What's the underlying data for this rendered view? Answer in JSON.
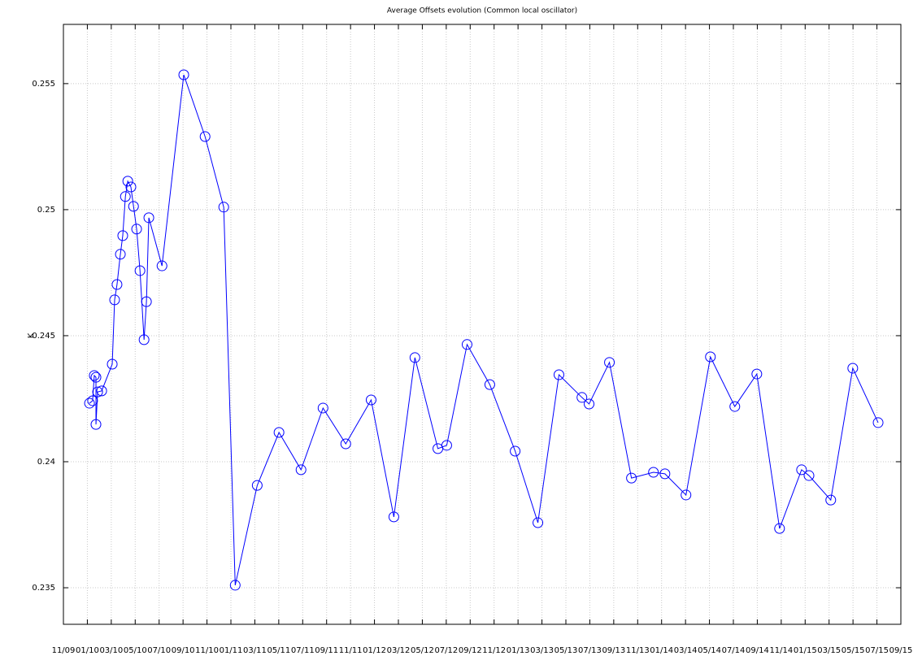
{
  "chart_data": {
    "type": "line",
    "title": "Average Offsets evolution (Common local oscillator)",
    "ylabel": "K",
    "grid": true,
    "marker": "circle",
    "xlim": [
      0,
      35
    ],
    "xticks": [
      {
        "value": 0,
        "label": "11/09"
      },
      {
        "value": 1,
        "label": "01/10"
      },
      {
        "value": 2,
        "label": "03/10"
      },
      {
        "value": 3,
        "label": "05/10"
      },
      {
        "value": 4,
        "label": "07/10"
      },
      {
        "value": 5,
        "label": "09/10"
      },
      {
        "value": 6,
        "label": "11/10"
      },
      {
        "value": 7,
        "label": "01/11"
      },
      {
        "value": 8,
        "label": "03/11"
      },
      {
        "value": 9,
        "label": "05/11"
      },
      {
        "value": 10,
        "label": "07/11"
      },
      {
        "value": 11,
        "label": "09/11"
      },
      {
        "value": 12,
        "label": "11/11"
      },
      {
        "value": 13,
        "label": "01/12"
      },
      {
        "value": 14,
        "label": "03/12"
      },
      {
        "value": 15,
        "label": "05/12"
      },
      {
        "value": 16,
        "label": "07/12"
      },
      {
        "value": 17,
        "label": "09/12"
      },
      {
        "value": 18,
        "label": "11/12"
      },
      {
        "value": 19,
        "label": "01/13"
      },
      {
        "value": 20,
        "label": "03/13"
      },
      {
        "value": 21,
        "label": "05/13"
      },
      {
        "value": 22,
        "label": "07/13"
      },
      {
        "value": 23,
        "label": "09/13"
      },
      {
        "value": 24,
        "label": "11/13"
      },
      {
        "value": 25,
        "label": "01/14"
      },
      {
        "value": 26,
        "label": "03/14"
      },
      {
        "value": 27,
        "label": "05/14"
      },
      {
        "value": 28,
        "label": "07/14"
      },
      {
        "value": 29,
        "label": "09/14"
      },
      {
        "value": 30,
        "label": "11/14"
      },
      {
        "value": 31,
        "label": "01/15"
      },
      {
        "value": 32,
        "label": "03/15"
      },
      {
        "value": 33,
        "label": "05/15"
      },
      {
        "value": 34,
        "label": "07/15"
      },
      {
        "value": 35,
        "label": "09/15"
      }
    ],
    "ylim": [
      0.23355,
      0.25735
    ],
    "yticks": [
      0.235,
      0.24,
      0.245,
      0.25,
      0.255
    ],
    "series": [
      {
        "color": "#0000ff",
        "x": [
          1.09,
          1.22,
          1.29,
          1.36,
          1.36,
          1.43,
          1.6,
          2.04,
          2.14,
          2.24,
          2.38,
          2.48,
          2.59,
          2.69,
          2.82,
          2.93,
          3.06,
          3.2,
          3.37,
          3.47,
          3.57,
          4.12,
          5.03,
          5.92,
          6.7,
          7.18,
          8.1,
          9.01,
          9.93,
          10.85,
          11.8,
          12.86,
          13.81,
          14.69,
          15.65,
          16.02,
          16.87,
          17.82,
          18.88,
          19.83,
          20.71,
          21.67,
          21.97,
          22.82,
          23.74,
          24.66,
          25.14,
          26.02,
          27.04,
          28.06,
          28.98,
          29.93,
          30.85,
          31.16,
          32.07,
          32.99,
          34.05
        ],
        "values": [
          0.24232,
          0.24242,
          0.24342,
          0.24335,
          0.24148,
          0.24277,
          0.24281,
          0.24387,
          0.24642,
          0.24703,
          0.24823,
          0.24897,
          0.25052,
          0.25113,
          0.2509,
          0.25013,
          0.24923,
          0.24758,
          0.24484,
          0.24635,
          0.24968,
          0.24777,
          0.25535,
          0.2529,
          0.2501,
          0.2351,
          0.23906,
          0.24116,
          0.23968,
          0.24213,
          0.24071,
          0.24245,
          0.23781,
          0.24413,
          0.24052,
          0.24065,
          0.24465,
          0.24306,
          0.24042,
          0.23758,
          0.24345,
          0.24255,
          0.24229,
          0.24394,
          0.23935,
          0.23958,
          0.23952,
          0.23868,
          0.24416,
          0.24219,
          0.24348,
          0.23735,
          0.23968,
          0.23945,
          0.23848,
          0.24371,
          0.24155
        ]
      }
    ]
  }
}
